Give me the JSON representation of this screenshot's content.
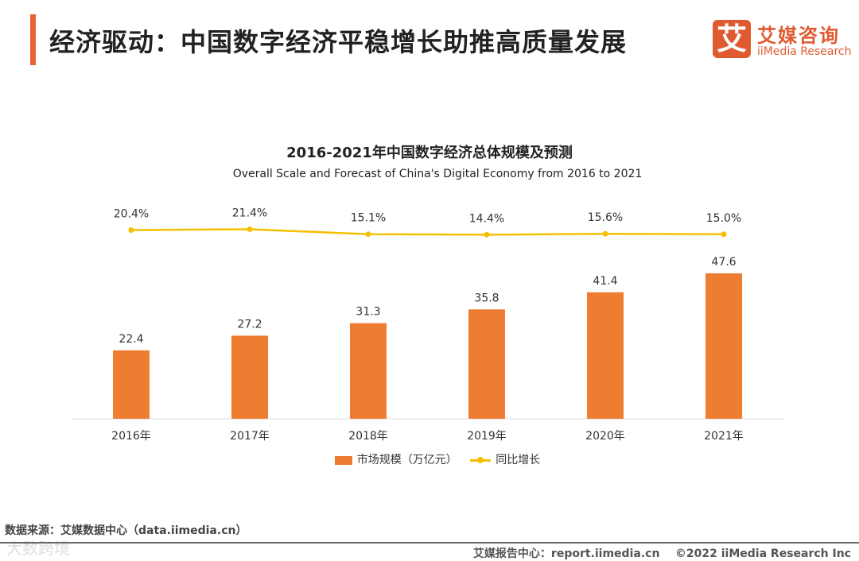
{
  "header": {
    "title": "经济驱动：中国数字经济平稳增长助推高质量发展",
    "logo_mark": "艾",
    "logo_cn": "艾媒咨询",
    "logo_en": "iiMedia Research"
  },
  "chart_data": {
    "type": "bar",
    "title": "2016-2021年中国数字经济总体规模及预测",
    "subtitle": "Overall Scale and Forecast of China's Digital Economy from 2016 to 2021",
    "categories": [
      "2016年",
      "2017年",
      "2018年",
      "2019年",
      "2020年",
      "2021年"
    ],
    "series": [
      {
        "name": "市场规模（万亿元）",
        "type": "bar",
        "values": [
          22.4,
          27.2,
          31.3,
          35.8,
          41.4,
          47.6
        ],
        "labels": [
          "22.4",
          "27.2",
          "31.3",
          "35.8",
          "41.4",
          "47.6"
        ],
        "color": "#ed7d31"
      },
      {
        "name": "同比增长",
        "type": "line",
        "values": [
          20.4,
          21.4,
          15.1,
          14.4,
          15.6,
          15.0
        ],
        "labels": [
          "20.4%",
          "21.4%",
          "15.1%",
          "14.4%",
          "15.6%",
          "15.0%"
        ],
        "color": "#f5c000"
      }
    ],
    "legend": "bottom",
    "grid": false
  },
  "footer": {
    "source": "数据来源：艾媒数据中心（data.iimedia.cn）",
    "watermark": "大数跨境",
    "report": "艾媒报告中心：report.iimedia.cn",
    "copyright": "©2022  iiMedia Research Inc"
  }
}
